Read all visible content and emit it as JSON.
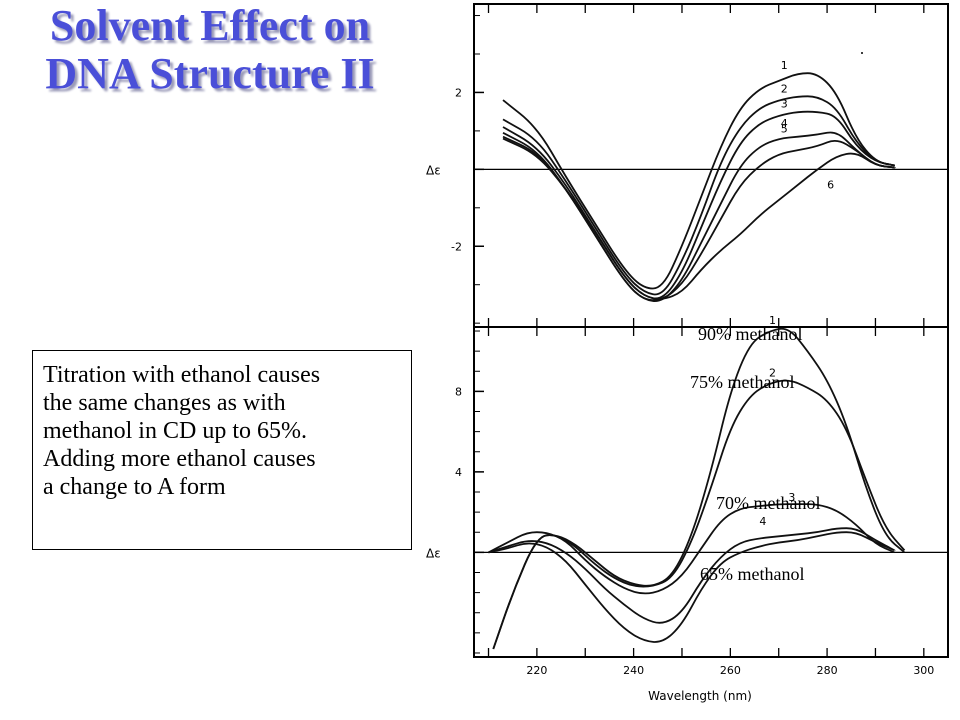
{
  "slide": {
    "title_lines": [
      "Solvent Effect on",
      "DNA Structure II"
    ],
    "colors": {
      "title": "#4a4fd8",
      "title_shadow": "#9a9ab8"
    }
  },
  "caption": {
    "lines": [
      "Titration with ethanol causes",
      "the same changes as with",
      "methanol in CD up to 65%.",
      "Adding more ethanol causes",
      "a change to A form"
    ]
  },
  "chart_data": [
    {
      "type": "line",
      "title": "",
      "ylabel": "Δε",
      "xlabel": "",
      "xlim": [
        207,
        305
      ],
      "ylim": [
        -4.1,
        4.3
      ],
      "y_ticks": [
        2,
        0,
        -2
      ],
      "zero_line": true,
      "series": [
        {
          "name": "1",
          "x": [
            213,
            220,
            226,
            232,
            238,
            242,
            246,
            250,
            254,
            258,
            262,
            266,
            270,
            274,
            278,
            282,
            286,
            290,
            294
          ],
          "y": [
            1.8,
            1.1,
            -0.2,
            -1.4,
            -2.6,
            -3.1,
            -3.1,
            -2.0,
            -0.7,
            0.6,
            1.6,
            2.1,
            2.3,
            2.5,
            2.5,
            2.0,
            0.8,
            0.2,
            0.1
          ]
        },
        {
          "name": "2",
          "x": [
            213,
            220,
            226,
            232,
            238,
            242,
            246,
            250,
            254,
            258,
            262,
            266,
            270,
            274,
            278,
            282,
            286,
            290,
            294
          ],
          "y": [
            1.3,
            0.8,
            -0.3,
            -1.5,
            -2.7,
            -3.2,
            -3.3,
            -2.4,
            -1.2,
            0.2,
            1.1,
            1.6,
            1.8,
            1.9,
            1.9,
            1.6,
            0.7,
            0.2,
            0.1
          ]
        },
        {
          "name": "3",
          "x": [
            213,
            220,
            226,
            232,
            238,
            242,
            246,
            250,
            254,
            258,
            262,
            266,
            270,
            274,
            278,
            282,
            286,
            290,
            294
          ],
          "y": [
            1.1,
            0.6,
            -0.4,
            -1.6,
            -2.8,
            -3.3,
            -3.4,
            -2.7,
            -1.5,
            -0.3,
            0.7,
            1.2,
            1.4,
            1.5,
            1.5,
            1.4,
            0.6,
            0.2,
            0.1
          ]
        },
        {
          "name": "4",
          "x": [
            213,
            220,
            226,
            232,
            238,
            242,
            246,
            250,
            254,
            258,
            262,
            266,
            270,
            274,
            278,
            282,
            286,
            290,
            294
          ],
          "y": [
            0.95,
            0.5,
            -0.5,
            -1.7,
            -2.9,
            -3.4,
            -3.45,
            -2.9,
            -1.9,
            -0.9,
            0.1,
            0.6,
            0.8,
            0.85,
            0.9,
            1.0,
            0.5,
            0.1,
            0.05
          ]
        },
        {
          "name": "5",
          "x": [
            213,
            220,
            226,
            232,
            238,
            242,
            246,
            250,
            254,
            258,
            262,
            266,
            270,
            274,
            278,
            282,
            286,
            290,
            294
          ],
          "y": [
            0.85,
            0.45,
            -0.5,
            -1.7,
            -2.9,
            -3.4,
            -3.4,
            -3.0,
            -2.2,
            -1.3,
            -0.4,
            0.1,
            0.4,
            0.5,
            0.6,
            0.8,
            0.5,
            0.1,
            0.05
          ]
        },
        {
          "name": "6",
          "x": [
            213,
            220,
            226,
            232,
            238,
            242,
            246,
            250,
            254,
            258,
            262,
            266,
            270,
            274,
            278,
            282,
            286,
            290,
            294
          ],
          "y": [
            0.8,
            0.4,
            -0.5,
            -1.6,
            -2.8,
            -3.3,
            -3.4,
            -3.2,
            -2.6,
            -2.1,
            -1.7,
            -1.2,
            -0.8,
            -0.4,
            0.0,
            0.35,
            0.45,
            0.1,
            0.05
          ]
        }
      ]
    },
    {
      "type": "line",
      "title": "",
      "ylabel": "Δε",
      "xlabel": "Wavelength  (nm)",
      "xlim": [
        207,
        305
      ],
      "ylim": [
        -5.2,
        11.2
      ],
      "y_ticks": [
        8,
        4,
        0
      ],
      "x_ticks": [
        220,
        240,
        260,
        280,
        300
      ],
      "zero_line": true,
      "annotations": [
        "90% methanol",
        "75% methanol",
        "70% methanol",
        "65% methanol"
      ],
      "series": [
        {
          "name": "1",
          "x": [
            211,
            215,
            220,
            224,
            228,
            232,
            236,
            240,
            244,
            248,
            252,
            256,
            260,
            264,
            268,
            272,
            276,
            280,
            284,
            288,
            292,
            296
          ],
          "y": [
            -4.8,
            -2.0,
            0.8,
            0.9,
            0.4,
            -0.4,
            -1.2,
            -1.6,
            -1.7,
            -1.2,
            0.8,
            4.0,
            8.0,
            10.4,
            11.0,
            11.2,
            10.0,
            8.6,
            6.4,
            3.2,
            0.8,
            0.0
          ]
        },
        {
          "name": "2",
          "x": [
            211,
            215,
            220,
            224,
            228,
            232,
            236,
            240,
            244,
            248,
            252,
            256,
            260,
            264,
            268,
            272,
            276,
            280,
            284,
            288,
            292,
            296
          ],
          "y": [
            -4.8,
            -2.0,
            0.8,
            0.9,
            0.3,
            -0.6,
            -1.3,
            -1.7,
            -1.7,
            -1.3,
            0.5,
            3.2,
            6.2,
            7.8,
            8.4,
            8.6,
            8.2,
            7.6,
            6.2,
            3.6,
            1.2,
            0.1
          ]
        },
        {
          "name": "3",
          "x": [
            210,
            214,
            218,
            222,
            226,
            230,
            234,
            238,
            242,
            246,
            250,
            254,
            258,
            262,
            266,
            270,
            274,
            278,
            282,
            286,
            290,
            294
          ],
          "y": [
            0.0,
            0.5,
            1.0,
            1.0,
            0.6,
            -0.4,
            -1.2,
            -1.8,
            -2.1,
            -1.9,
            -1.2,
            0.2,
            1.6,
            2.2,
            2.3,
            2.4,
            2.4,
            2.4,
            2.1,
            1.4,
            0.4,
            0.0
          ]
        },
        {
          "name": "4",
          "x": [
            210,
            214,
            218,
            222,
            226,
            230,
            234,
            238,
            242,
            246,
            250,
            254,
            258,
            262,
            266,
            270,
            274,
            278,
            282,
            286,
            290,
            294
          ],
          "y": [
            0.0,
            0.3,
            0.6,
            0.5,
            0.0,
            -0.8,
            -1.8,
            -2.6,
            -3.3,
            -3.6,
            -3.0,
            -1.4,
            -0.2,
            0.5,
            0.7,
            0.8,
            0.9,
            1.0,
            1.2,
            1.2,
            0.6,
            0.1
          ]
        },
        {
          "name": "",
          "x": [
            210,
            214,
            218,
            222,
            226,
            230,
            234,
            238,
            242,
            246,
            250,
            254,
            258,
            262,
            266,
            270,
            274,
            278,
            282,
            286,
            290,
            294
          ],
          "y": [
            0.0,
            0.2,
            0.5,
            0.3,
            -0.4,
            -1.6,
            -2.8,
            -3.8,
            -4.4,
            -4.5,
            -3.6,
            -1.8,
            -0.5,
            0.0,
            0.3,
            0.5,
            0.6,
            0.8,
            1.0,
            1.0,
            0.5,
            0.1
          ]
        }
      ]
    }
  ]
}
